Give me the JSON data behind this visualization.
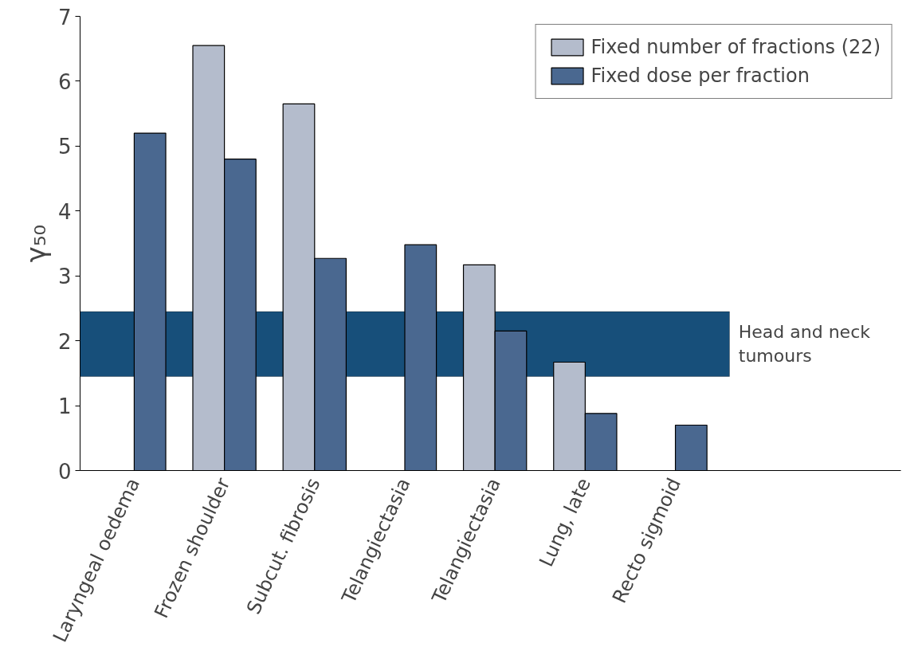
{
  "chart_data": {
    "type": "bar",
    "ylabel": "γ₅₀",
    "categories": [
      "Laryngeal oedema",
      "Frozen shoulder",
      "Subcut. fibrosis",
      "Telangiectasia",
      "Telangiectasia",
      "Lung, late",
      "Recto sigmoid"
    ],
    "series": [
      {
        "name": "Fixed number of fractions (22)",
        "color": "#b4bccc",
        "values": [
          null,
          6.55,
          5.65,
          null,
          3.17,
          1.67,
          null
        ]
      },
      {
        "name": "Fixed dose per fraction",
        "color": "#4a6890",
        "values": [
          5.2,
          4.8,
          3.27,
          3.48,
          2.15,
          0.88,
          0.7
        ]
      }
    ],
    "ylim": [
      0,
      7
    ],
    "yticks": [
      0,
      1,
      2,
      3,
      4,
      5,
      6,
      7
    ],
    "bands": [
      {
        "axis": "y",
        "from": 1.45,
        "to": 2.45,
        "label": "Head and neck tumours",
        "color": "#174f7a"
      }
    ],
    "legend": "top right",
    "grid": false
  }
}
